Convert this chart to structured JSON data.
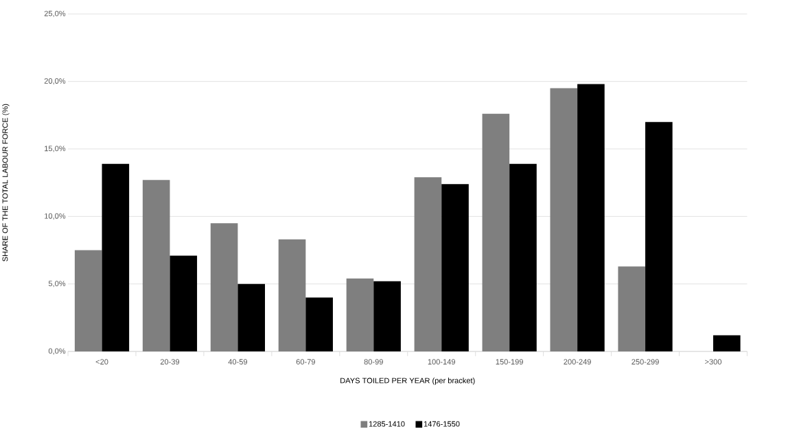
{
  "chart_data": {
    "type": "bar",
    "xlabel": "DAYS TOILED PER YEAR (per bracket)",
    "ylabel": "SHARE OF THE TOTAL LABOUR FORCE (%)",
    "categories": [
      "<20",
      "20-39",
      "40-59",
      "60-79",
      "80-99",
      "100-149",
      "150-199",
      "200-249",
      "250-299",
      ">300"
    ],
    "series": [
      {
        "name": "1285-1410",
        "color": "#7f7f7f",
        "values": [
          7.5,
          12.7,
          9.5,
          8.3,
          5.4,
          12.9,
          17.6,
          19.5,
          6.3,
          null
        ]
      },
      {
        "name": "1476-1550",
        "color": "#000000",
        "values": [
          13.9,
          7.1,
          5.0,
          4.0,
          5.2,
          12.4,
          13.9,
          19.8,
          17.0,
          1.2
        ]
      }
    ],
    "ylim": [
      0,
      25
    ],
    "yticks": [
      {
        "value": 0,
        "label": "0,0%"
      },
      {
        "value": 5,
        "label": "5,0%"
      },
      {
        "value": 10,
        "label": "10,0%"
      },
      {
        "value": 15,
        "label": "15,0%"
      },
      {
        "value": 20,
        "label": "20,0%"
      },
      {
        "value": 25,
        "label": "25,0%"
      }
    ],
    "grid": "y",
    "legend": "bottom"
  }
}
